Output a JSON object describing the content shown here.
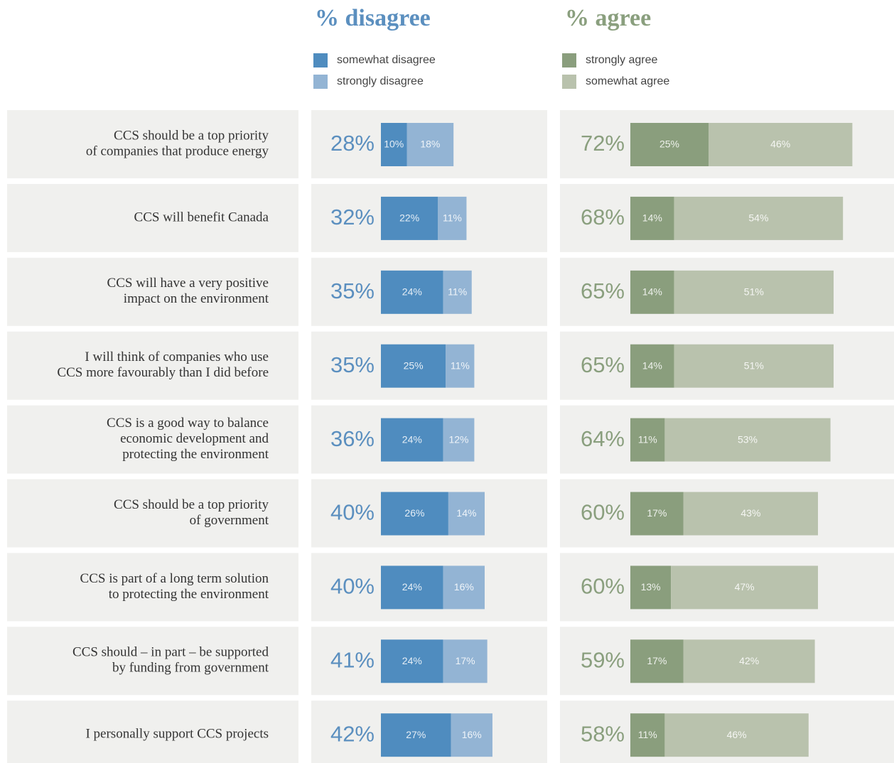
{
  "chart_data": {
    "type": "bar",
    "stacked": true,
    "categories": [
      [
        "CCS should be a top priority",
        "of companies that produce energy"
      ],
      [
        "CCS will benefit Canada"
      ],
      [
        "CCS will have a very positive",
        "impact on the environment"
      ],
      [
        "I will think of companies who use",
        "CCS more favourably than I did before"
      ],
      [
        "CCS is a good way to balance",
        "economic development and",
        "protecting the environment"
      ],
      [
        "CCS should be a top priority",
        "of government"
      ],
      [
        "CCS is part of a long term solution",
        "to protecting the environment"
      ],
      [
        "CCS should – in part – be supported",
        "by funding from government"
      ],
      [
        "I personally support CCS projects"
      ]
    ],
    "panels": [
      {
        "title": "% disagree",
        "color": "#5b8fbf",
        "totals": [
          28,
          32,
          35,
          35,
          36,
          40,
          40,
          41,
          42
        ],
        "total_labels": [
          "28%",
          "32%",
          "35%",
          "35%",
          "36%",
          "40%",
          "40%",
          "41%",
          "42%"
        ],
        "series": [
          {
            "name": "somewhat disagree",
            "color": "#4f8cbf",
            "values": [
              10,
              22,
              24,
              25,
              24,
              26,
              24,
              24,
              27
            ],
            "value_labels": [
              "10%",
              "22%",
              "24%",
              "25%",
              "24%",
              "26%",
              "24%",
              "24%",
              "27%"
            ]
          },
          {
            "name": "strongly disagree",
            "color": "#93b4d4",
            "values": [
              18,
              11,
              11,
              11,
              12,
              14,
              16,
              17,
              16
            ],
            "value_labels": [
              "18%",
              "11%",
              "11%",
              "11%",
              "12%",
              "14%",
              "16%",
              "17%",
              "16%"
            ]
          }
        ]
      },
      {
        "title": "% agree",
        "color": "#8a9f7e",
        "totals": [
          72,
          68,
          65,
          65,
          64,
          60,
          60,
          59,
          58
        ],
        "total_labels": [
          "72%",
          "68%",
          "65%",
          "65%",
          "64%",
          "60%",
          "60%",
          "59%",
          "58%"
        ],
        "series": [
          {
            "name": "strongly agree",
            "color": "#8a9e7d",
            "values": [
              25,
              14,
              14,
              14,
              11,
              17,
              13,
              17,
              11
            ],
            "value_labels": [
              "25%",
              "14%",
              "14%",
              "14%",
              "11%",
              "17%",
              "13%",
              "17%",
              "11%"
            ]
          },
          {
            "name": "somewhat agree",
            "color": "#b9c2ad",
            "values": [
              46,
              54,
              51,
              51,
              53,
              43,
              47,
              42,
              46
            ],
            "value_labels": [
              "46%",
              "54%",
              "51%",
              "51%",
              "53%",
              "43%",
              "47%",
              "42%",
              "46%"
            ]
          }
        ]
      }
    ]
  }
}
